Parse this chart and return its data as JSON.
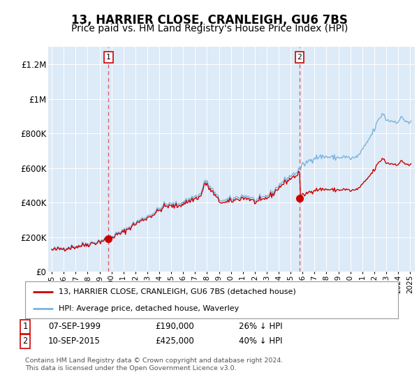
{
  "title": "13, HARRIER CLOSE, CRANLEIGH, GU6 7BS",
  "subtitle": "Price paid vs. HM Land Registry's House Price Index (HPI)",
  "ylim": [
    0,
    1300000
  ],
  "yticks": [
    0,
    200000,
    400000,
    600000,
    800000,
    1000000,
    1200000
  ],
  "ytick_labels": [
    "£0",
    "£200K",
    "£400K",
    "£600K",
    "£800K",
    "£1M",
    "£1.2M"
  ],
  "bg_color": "#ddeaf7",
  "transaction1": {
    "date_num": 1999.75,
    "price": 190000,
    "label": "1",
    "date_str": "07-SEP-1999",
    "price_str": "£190,000",
    "pct": "26% ↓ HPI"
  },
  "transaction2": {
    "date_num": 2015.75,
    "price": 425000,
    "label": "2",
    "date_str": "10-SEP-2015",
    "price_str": "£425,000",
    "pct": "40% ↓ HPI"
  },
  "legend_line1": "13, HARRIER CLOSE, CRANLEIGH, GU6 7BS (detached house)",
  "legend_line2": "HPI: Average price, detached house, Waverley",
  "footer": "Contains HM Land Registry data © Crown copyright and database right 2024.\nThis data is licensed under the Open Government Licence v3.0.",
  "hpi_color": "#7ab4e0",
  "price_color": "#cc0000",
  "vline_color": "#e06060",
  "title_fontsize": 12,
  "subtitle_fontsize": 10
}
